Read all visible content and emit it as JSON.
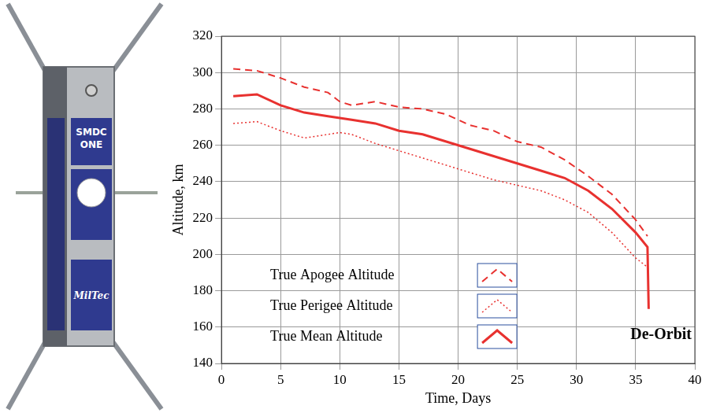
{
  "chart_data": {
    "type": "line",
    "x_label": "Time, Days",
    "y_label": "Altitude, km",
    "annotations": [
      "De-Orbit"
    ],
    "xlim": [
      0,
      40
    ],
    "xticks": [
      0,
      5,
      10,
      15,
      20,
      25,
      30,
      35,
      40
    ],
    "ylim": [
      140,
      320
    ],
    "yticks": [
      140,
      160,
      180,
      200,
      220,
      240,
      260,
      280,
      300,
      320
    ],
    "grid": true,
    "legend": "lower left",
    "series": [
      {
        "name": "True Apogee Altitude",
        "color": "#e8312f",
        "line_style": "dashed",
        "x": [
          1,
          3,
          5,
          7,
          9,
          10,
          11,
          13,
          15,
          17,
          19,
          21,
          23,
          25,
          27,
          29,
          31,
          33,
          35,
          36
        ],
        "values": [
          302,
          301,
          297,
          292,
          289,
          284,
          282,
          284,
          281,
          280,
          277,
          271,
          268,
          262,
          259,
          252,
          243,
          233,
          219,
          210
        ]
      },
      {
        "name": "True Perigee Altitude",
        "color": "#e8312f",
        "line_style": "dotted",
        "x": [
          1,
          3,
          5,
          7,
          9,
          10,
          11,
          13,
          15,
          17,
          19,
          21,
          23,
          25,
          27,
          29,
          31,
          33,
          35,
          36
        ],
        "values": [
          272,
          273,
          268,
          264,
          266,
          267,
          266,
          261,
          257,
          253,
          249,
          245,
          241,
          238,
          235,
          230,
          223,
          212,
          198,
          193
        ]
      },
      {
        "name": "True Mean Altitude",
        "color": "#e8312f",
        "line_style": "solid",
        "x": [
          1,
          3,
          5,
          7,
          9,
          11,
          13,
          15,
          17,
          19,
          21,
          23,
          25,
          27,
          29,
          31,
          33,
          35,
          36,
          36.1
        ],
        "values": [
          287,
          288,
          282,
          278,
          276,
          274,
          272,
          268,
          266,
          262,
          258,
          254,
          250,
          246,
          242,
          235,
          225,
          212,
          204,
          170
        ]
      }
    ]
  },
  "illustration": {
    "labels": [
      "SMDC ONE",
      "MilTec"
    ]
  }
}
